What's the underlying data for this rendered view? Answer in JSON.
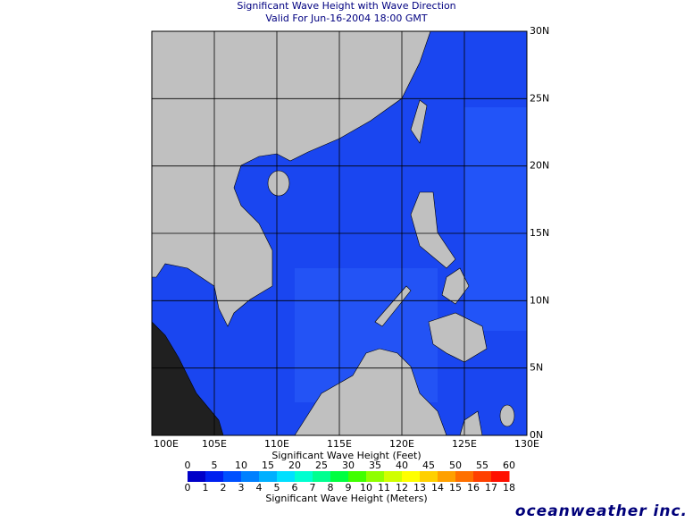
{
  "header": {
    "title": "Significant Wave Height with Wave Direction",
    "subtitle": "Valid For Jun-16-2004 18:00 GMT"
  },
  "map": {
    "lon_labels": [
      "100E",
      "105E",
      "110E",
      "115E",
      "120E",
      "125E",
      "130E"
    ],
    "lat_labels": [
      "30N",
      "25N",
      "20N",
      "15N",
      "10N",
      "5N",
      "0N"
    ]
  },
  "legend": {
    "feet_title": "Significant Wave Height (Feet)",
    "feet_ticks": [
      0,
      5,
      10,
      15,
      20,
      25,
      30,
      35,
      40,
      45,
      50,
      55,
      60
    ],
    "meters_title": "Significant Wave Height (Meters)",
    "meters_ticks": [
      0,
      1,
      2,
      3,
      4,
      5,
      6,
      7,
      8,
      9,
      10,
      11,
      12,
      13,
      14,
      15,
      16,
      17,
      18
    ],
    "colors": [
      "#0000c8",
      "#0020f0",
      "#0050ff",
      "#0080ff",
      "#00b0ff",
      "#00e0ff",
      "#00ffd0",
      "#00ff90",
      "#00ff40",
      "#40ff00",
      "#90ff00",
      "#d0ff00",
      "#ffff00",
      "#ffd000",
      "#ffa000",
      "#ff7000",
      "#ff4000",
      "#ff1000"
    ]
  },
  "logo": "oceanweather inc."
}
